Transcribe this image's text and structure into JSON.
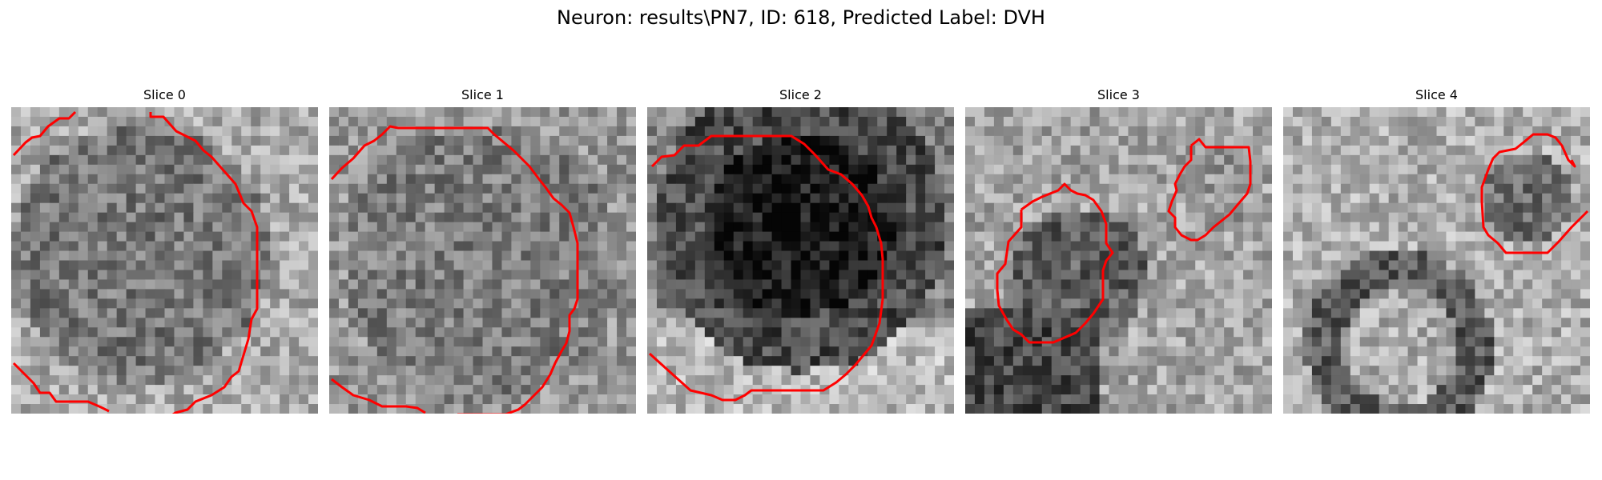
{
  "figure": {
    "title": "Neuron: results\\PN7, ID: 618, Predicted Label: DVH"
  },
  "slices": [
    {
      "label": "Slice 0"
    },
    {
      "label": "Slice 1"
    },
    {
      "label": "Slice 2"
    },
    {
      "label": "Slice 3"
    },
    {
      "label": "Slice 4"
    }
  ],
  "colors": {
    "contour": "#ff0000",
    "background": "#ffffff"
  }
}
